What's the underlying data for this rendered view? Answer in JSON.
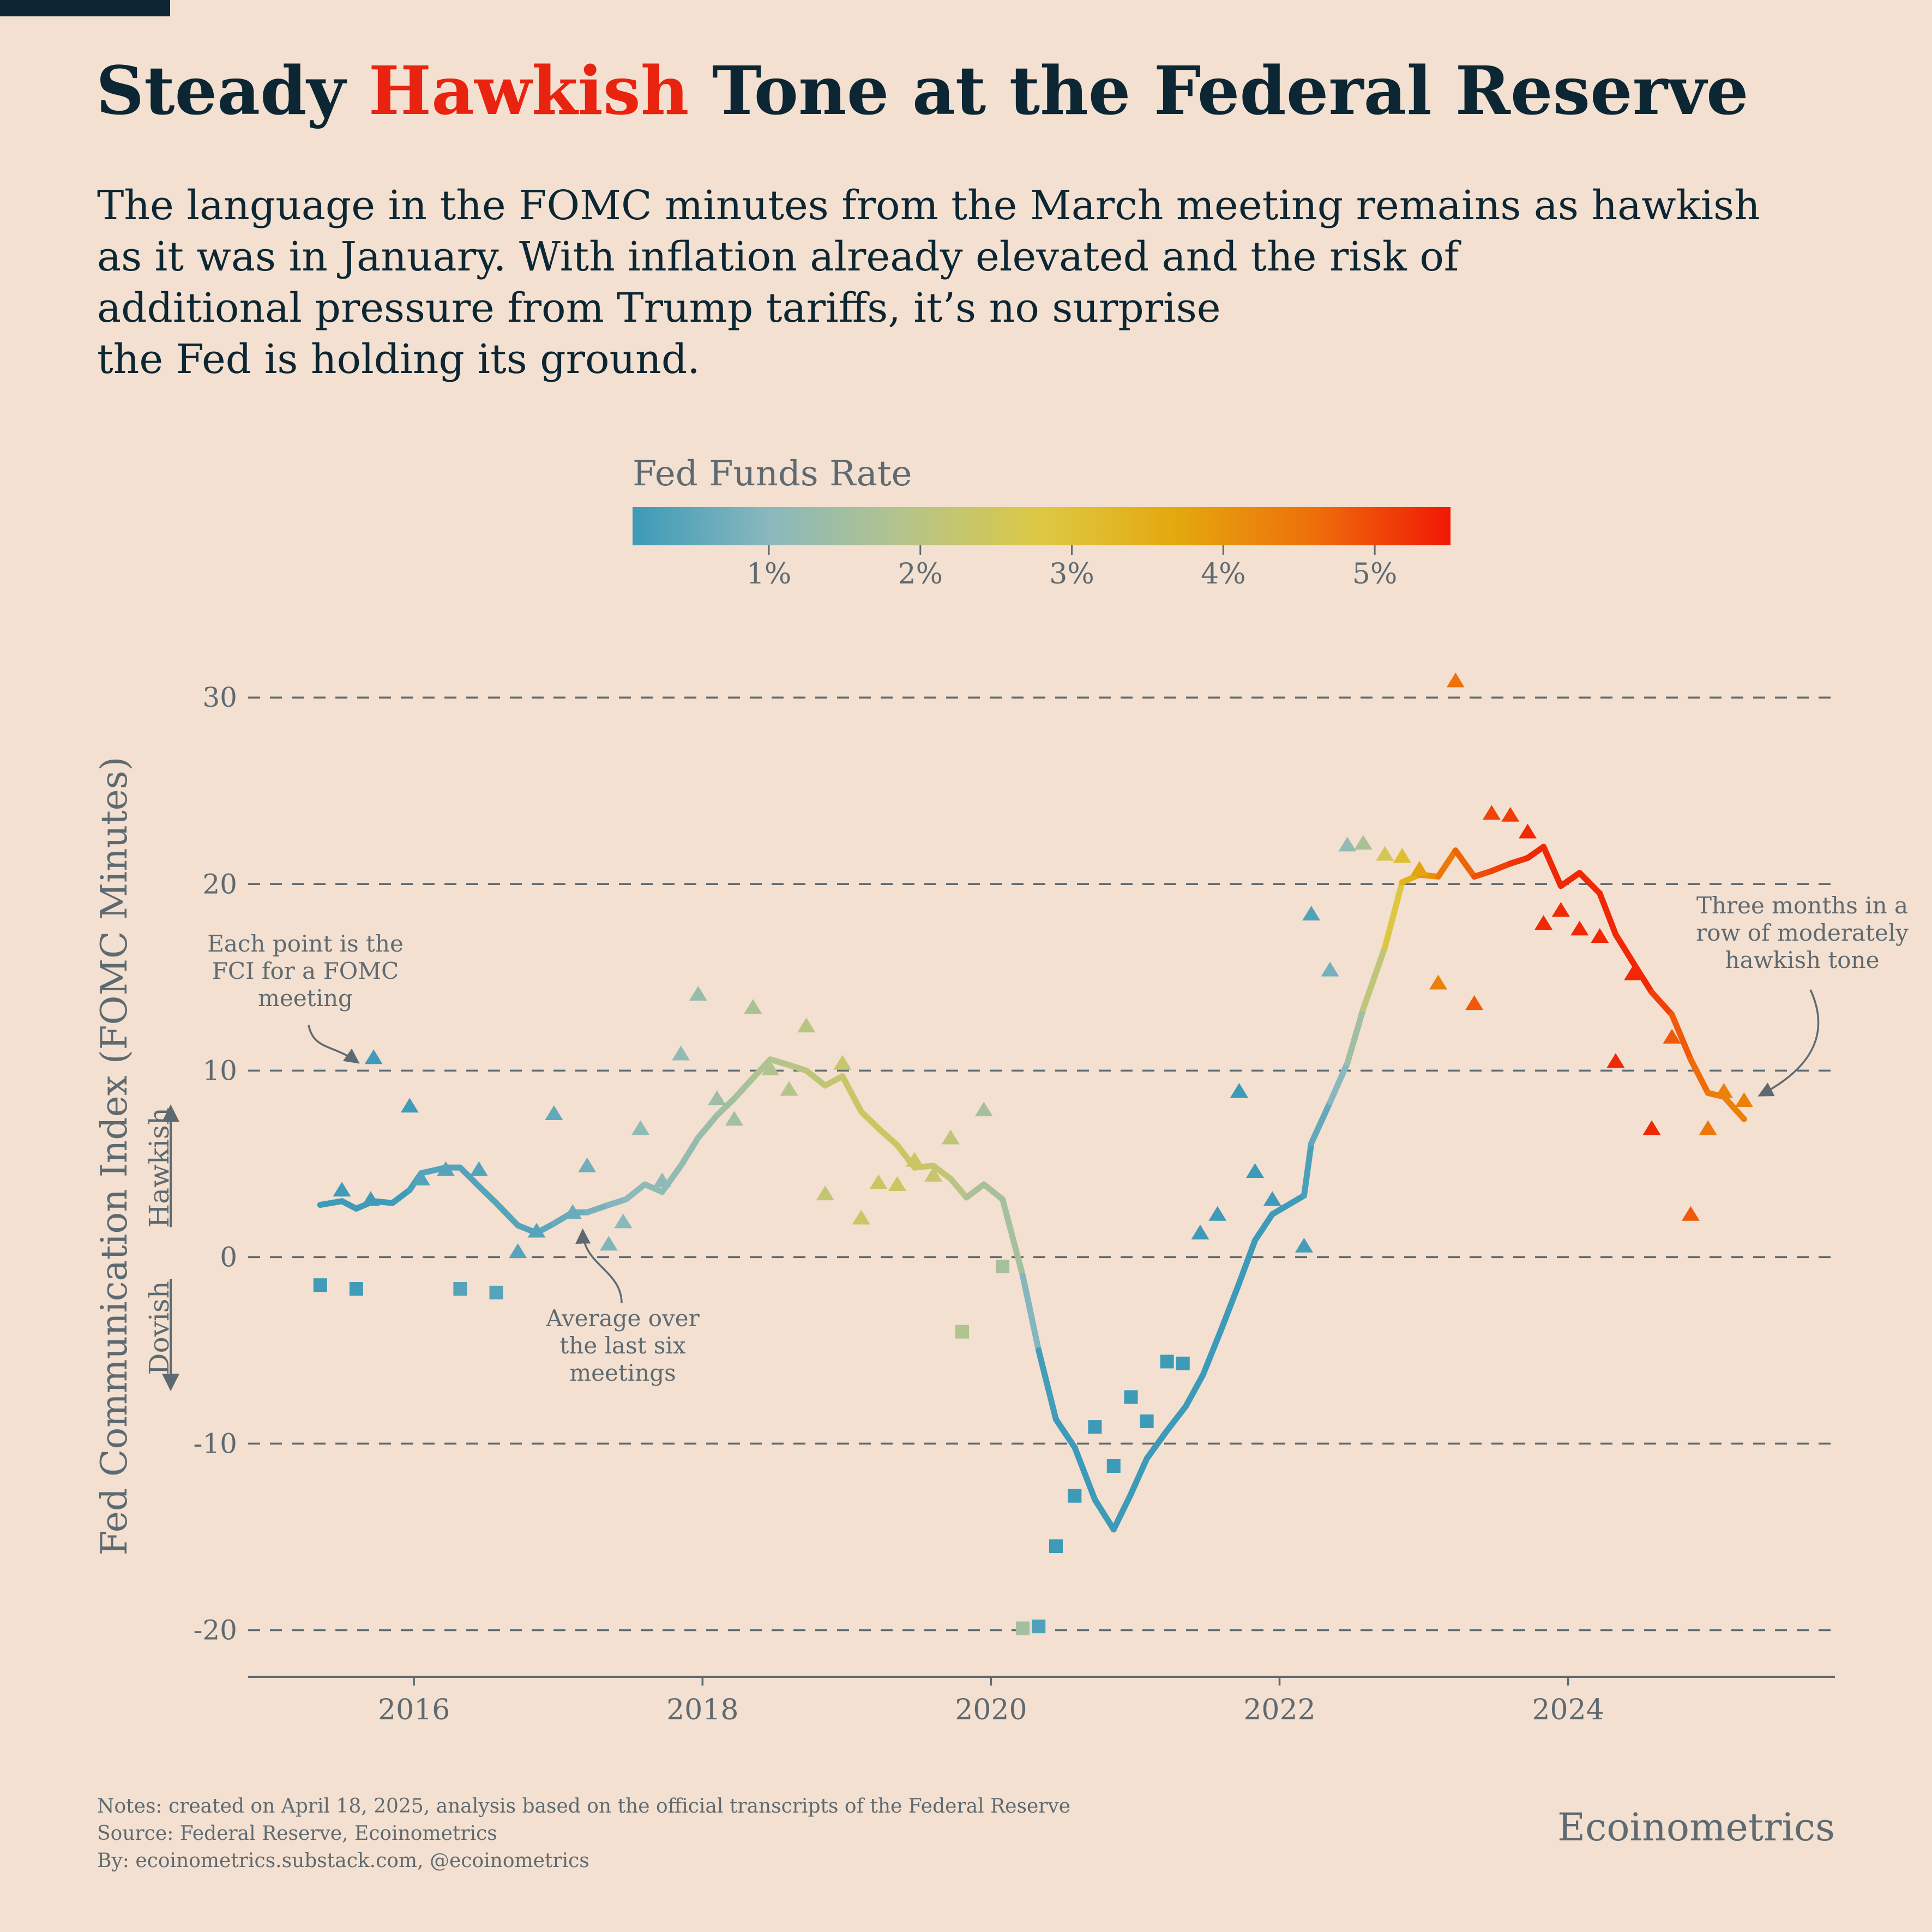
{
  "header": {
    "title_part1": "Steady ",
    "title_highlight": "Hawkish",
    "title_part2": " Tone at the Federal Reserve",
    "title_color": "#0c2633",
    "highlight_color": "#e8230f",
    "subtitle": "The language in the FOMC minutes from the March meeting remains as hawkish\nas it was in January. With inflation already elevated and the risk of\nadditional pressure from Trump tariffs, it’s no surprise\nthe Fed is holding its ground."
  },
  "legend": {
    "title": "Fed Funds Rate",
    "range": [
      0.1,
      5.5
    ],
    "ticks": [
      1,
      2,
      3,
      4,
      5
    ],
    "tick_labels": [
      "1%",
      "2%",
      "3%",
      "4%",
      "5%"
    ],
    "colors": [
      "#3d9ab8",
      "#89b8bd",
      "#b5c48a",
      "#ddc843",
      "#e4a80d",
      "#ee6f0a",
      "#f01805"
    ]
  },
  "chart_data": {
    "type": "scatter",
    "ylabel": "Fed Communication Index (FOMC Minutes)",
    "xlabel": "",
    "xlim": [
      2014.85,
      2025.85
    ],
    "ylim": [
      -22.5,
      31
    ],
    "x_ticks": [
      2016,
      2018,
      2020,
      2022,
      2024
    ],
    "x_tick_labels": [
      "2016",
      "2018",
      "2020",
      "2022",
      "2024"
    ],
    "y_ticks": [
      -20,
      -10,
      0,
      10,
      20,
      30
    ],
    "y_tick_labels": [
      "-20",
      "-10",
      "0",
      "10",
      "20",
      "30"
    ],
    "grid": "horizontal dashed",
    "hawkish_label": "Hawkish",
    "dovish_label": "Dovish",
    "points": [
      {
        "x": 2015.35,
        "y": -1.5,
        "rate": 0.12
      },
      {
        "x": 2015.5,
        "y": 3.6,
        "rate": 0.13
      },
      {
        "x": 2015.6,
        "y": -1.7,
        "rate": 0.14
      },
      {
        "x": 2015.7,
        "y": 3.1,
        "rate": 0.14
      },
      {
        "x": 2015.72,
        "y": 10.7,
        "rate": 0.14
      },
      {
        "x": 2015.97,
        "y": 8.1,
        "rate": 0.13
      },
      {
        "x": 2016.05,
        "y": 4.2,
        "rate": 0.37
      },
      {
        "x": 2016.22,
        "y": 4.7,
        "rate": 0.37
      },
      {
        "x": 2016.32,
        "y": -1.7,
        "rate": 0.37
      },
      {
        "x": 2016.45,
        "y": 4.7,
        "rate": 0.38
      },
      {
        "x": 2016.57,
        "y": -1.9,
        "rate": 0.39
      },
      {
        "x": 2016.72,
        "y": 0.3,
        "rate": 0.4
      },
      {
        "x": 2016.85,
        "y": 1.4,
        "rate": 0.41
      },
      {
        "x": 2016.97,
        "y": 7.7,
        "rate": 0.54
      },
      {
        "x": 2017.1,
        "y": 2.4,
        "rate": 0.65
      },
      {
        "x": 2017.2,
        "y": 4.9,
        "rate": 0.7
      },
      {
        "x": 2017.35,
        "y": 0.7,
        "rate": 0.9
      },
      {
        "x": 2017.45,
        "y": 1.9,
        "rate": 1.0
      },
      {
        "x": 2017.57,
        "y": 6.9,
        "rate": 1.15
      },
      {
        "x": 2017.72,
        "y": 4.1,
        "rate": 1.15
      },
      {
        "x": 2017.85,
        "y": 10.9,
        "rate": 1.16
      },
      {
        "x": 2017.97,
        "y": 14.1,
        "rate": 1.3
      },
      {
        "x": 2018.1,
        "y": 8.5,
        "rate": 1.41
      },
      {
        "x": 2018.22,
        "y": 7.4,
        "rate": 1.5
      },
      {
        "x": 2018.35,
        "y": 13.4,
        "rate": 1.7
      },
      {
        "x": 2018.47,
        "y": 10.1,
        "rate": 1.82
      },
      {
        "x": 2018.6,
        "y": 9,
        "rate": 1.91
      },
      {
        "x": 2018.72,
        "y": 12.4,
        "rate": 2.0
      },
      {
        "x": 2018.85,
        "y": 3.4,
        "rate": 2.2
      },
      {
        "x": 2018.97,
        "y": 10.4,
        "rate": 2.27
      },
      {
        "x": 2019.1,
        "y": 2.1,
        "rate": 2.4
      },
      {
        "x": 2019.22,
        "y": 4.0,
        "rate": 2.41
      },
      {
        "x": 2019.35,
        "y": 3.9,
        "rate": 2.42
      },
      {
        "x": 2019.47,
        "y": 5.2,
        "rate": 2.4
      },
      {
        "x": 2019.6,
        "y": 4.4,
        "rate": 2.3
      },
      {
        "x": 2019.72,
        "y": 6.4,
        "rate": 2.1
      },
      {
        "x": 2019.8,
        "y": -4,
        "rate": 1.8
      },
      {
        "x": 2019.95,
        "y": 7.9,
        "rate": 1.6
      },
      {
        "x": 2020.08,
        "y": -0.5,
        "rate": 1.6
      },
      {
        "x": 2020.22,
        "y": -19.9,
        "rate": 1.55
      },
      {
        "x": 2020.33,
        "y": -19.8,
        "rate": 0.3
      },
      {
        "x": 2020.45,
        "y": -15.5,
        "rate": 0.05
      },
      {
        "x": 2020.58,
        "y": -12.8,
        "rate": 0.09
      },
      {
        "x": 2020.72,
        "y": -9.1,
        "rate": 0.1
      },
      {
        "x": 2020.85,
        "y": -11.2,
        "rate": 0.09
      },
      {
        "x": 2020.97,
        "y": -7.5,
        "rate": 0.09
      },
      {
        "x": 2021.08,
        "y": -8.8,
        "rate": 0.09
      },
      {
        "x": 2021.22,
        "y": -5.6,
        "rate": 0.07
      },
      {
        "x": 2021.33,
        "y": -5.7,
        "rate": 0.06
      },
      {
        "x": 2021.45,
        "y": 1.3,
        "rate": 0.06
      },
      {
        "x": 2021.57,
        "y": 2.3,
        "rate": 0.1
      },
      {
        "x": 2021.72,
        "y": 8.9,
        "rate": 0.08
      },
      {
        "x": 2021.83,
        "y": 4.6,
        "rate": 0.08
      },
      {
        "x": 2021.95,
        "y": 3.1,
        "rate": 0.08
      },
      {
        "x": 2022.17,
        "y": 0.6,
        "rate": 0.2
      },
      {
        "x": 2022.22,
        "y": 18.4,
        "rate": 0.33
      },
      {
        "x": 2022.35,
        "y": 15.4,
        "rate": 0.77
      },
      {
        "x": 2022.47,
        "y": 22.1,
        "rate": 1.21
      },
      {
        "x": 2022.58,
        "y": 22.2,
        "rate": 1.68
      },
      {
        "x": 2022.73,
        "y": 21.6,
        "rate": 2.56
      },
      {
        "x": 2022.85,
        "y": 21.5,
        "rate": 3.08
      },
      {
        "x": 2022.97,
        "y": 20.8,
        "rate": 3.78
      },
      {
        "x": 2023.1,
        "y": 14.7,
        "rate": 4.33
      },
      {
        "x": 2023.22,
        "y": 30.9,
        "rate": 4.57
      },
      {
        "x": 2023.35,
        "y": 13.6,
        "rate": 4.83
      },
      {
        "x": 2023.47,
        "y": 23.8,
        "rate": 5.06
      },
      {
        "x": 2023.6,
        "y": 23.7,
        "rate": 5.12
      },
      {
        "x": 2023.72,
        "y": 22.8,
        "rate": 5.33
      },
      {
        "x": 2023.83,
        "y": 17.9,
        "rate": 5.33
      },
      {
        "x": 2023.95,
        "y": 18.6,
        "rate": 5.33
      },
      {
        "x": 2024.08,
        "y": 17.6,
        "rate": 5.33
      },
      {
        "x": 2024.22,
        "y": 17.2,
        "rate": 5.33
      },
      {
        "x": 2024.33,
        "y": 10.5,
        "rate": 5.33
      },
      {
        "x": 2024.45,
        "y": 15.2,
        "rate": 5.33
      },
      {
        "x": 2024.58,
        "y": 6.9,
        "rate": 5.33
      },
      {
        "x": 2024.72,
        "y": 11.8,
        "rate": 4.83
      },
      {
        "x": 2024.85,
        "y": 2.3,
        "rate": 4.83
      },
      {
        "x": 2024.97,
        "y": 6.9,
        "rate": 4.48
      },
      {
        "x": 2025.08,
        "y": 8.9,
        "rate": 4.33
      },
      {
        "x": 2025.22,
        "y": 8.4,
        "rate": 4.33
      }
    ],
    "series": [
      {
        "points": [
          {
            "x": 2015.35,
            "y": 2.8,
            "rate": 0.12
          },
          {
            "x": 2015.5,
            "y": 3.0,
            "rate": 0.13
          },
          {
            "x": 2015.6,
            "y": 2.6,
            "rate": 0.14
          },
          {
            "x": 2015.72,
            "y": 3.0,
            "rate": 0.14
          },
          {
            "x": 2015.85,
            "y": 2.9,
            "rate": 0.14
          },
          {
            "x": 2015.97,
            "y": 3.6,
            "rate": 0.13
          },
          {
            "x": 2016.05,
            "y": 4.5,
            "rate": 0.37
          },
          {
            "x": 2016.22,
            "y": 4.8,
            "rate": 0.37
          },
          {
            "x": 2016.32,
            "y": 4.8,
            "rate": 0.37
          },
          {
            "x": 2016.45,
            "y": 3.8,
            "rate": 0.38
          },
          {
            "x": 2016.57,
            "y": 2.9,
            "rate": 0.39
          },
          {
            "x": 2016.72,
            "y": 1.7,
            "rate": 0.4
          },
          {
            "x": 2016.85,
            "y": 1.3,
            "rate": 0.41
          },
          {
            "x": 2016.97,
            "y": 1.8,
            "rate": 0.54
          },
          {
            "x": 2017.1,
            "y": 2.4,
            "rate": 0.65
          },
          {
            "x": 2017.2,
            "y": 2.4,
            "rate": 0.7
          },
          {
            "x": 2017.35,
            "y": 2.8,
            "rate": 0.9
          },
          {
            "x": 2017.47,
            "y": 3.1,
            "rate": 1.0
          },
          {
            "x": 2017.6,
            "y": 3.9,
            "rate": 1.15
          },
          {
            "x": 2017.72,
            "y": 3.5,
            "rate": 1.15
          },
          {
            "x": 2017.85,
            "y": 4.9,
            "rate": 1.16
          },
          {
            "x": 2017.97,
            "y": 6.4,
            "rate": 1.3
          },
          {
            "x": 2018.1,
            "y": 7.6,
            "rate": 1.41
          },
          {
            "x": 2018.22,
            "y": 8.5,
            "rate": 1.5
          },
          {
            "x": 2018.35,
            "y": 9.6,
            "rate": 1.7
          },
          {
            "x": 2018.47,
            "y": 10.6,
            "rate": 1.82
          },
          {
            "x": 2018.6,
            "y": 10.3,
            "rate": 1.91
          },
          {
            "x": 2018.72,
            "y": 10.0,
            "rate": 2.0
          },
          {
            "x": 2018.85,
            "y": 9.2,
            "rate": 2.2
          },
          {
            "x": 2018.97,
            "y": 9.7,
            "rate": 2.27
          },
          {
            "x": 2019.1,
            "y": 7.8,
            "rate": 2.4
          },
          {
            "x": 2019.22,
            "y": 6.9,
            "rate": 2.41
          },
          {
            "x": 2019.35,
            "y": 6.0,
            "rate": 2.42
          },
          {
            "x": 2019.47,
            "y": 4.8,
            "rate": 2.4
          },
          {
            "x": 2019.6,
            "y": 4.9,
            "rate": 2.3
          },
          {
            "x": 2019.72,
            "y": 4.2,
            "rate": 2.1
          },
          {
            "x": 2019.83,
            "y": 3.2,
            "rate": 1.8
          },
          {
            "x": 2019.95,
            "y": 3.9,
            "rate": 1.6
          },
          {
            "x": 2020.08,
            "y": 3.1,
            "rate": 1.6
          },
          {
            "x": 2020.22,
            "y": -1.0,
            "rate": 1.55
          },
          {
            "x": 2020.33,
            "y": -5.0,
            "rate": 0.3
          },
          {
            "x": 2020.45,
            "y": -8.7,
            "rate": 0.05
          },
          {
            "x": 2020.58,
            "y": -10.2,
            "rate": 0.09
          },
          {
            "x": 2020.72,
            "y": -13.0,
            "rate": 0.1
          },
          {
            "x": 2020.85,
            "y": -14.6,
            "rate": 0.09
          },
          {
            "x": 2020.97,
            "y": -12.7,
            "rate": 0.09
          },
          {
            "x": 2021.08,
            "y": -10.8,
            "rate": 0.09
          },
          {
            "x": 2021.22,
            "y": -9.3,
            "rate": 0.07
          },
          {
            "x": 2021.35,
            "y": -8.0,
            "rate": 0.06
          },
          {
            "x": 2021.47,
            "y": -6.3,
            "rate": 0.06
          },
          {
            "x": 2021.6,
            "y": -3.8,
            "rate": 0.1
          },
          {
            "x": 2021.72,
            "y": -1.4,
            "rate": 0.08
          },
          {
            "x": 2021.83,
            "y": 0.9,
            "rate": 0.08
          },
          {
            "x": 2021.95,
            "y": 2.3,
            "rate": 0.08
          },
          {
            "x": 2022.17,
            "y": 3.3,
            "rate": 0.2
          },
          {
            "x": 2022.22,
            "y": 6.1,
            "rate": 0.33
          },
          {
            "x": 2022.35,
            "y": 8.3,
            "rate": 0.77
          },
          {
            "x": 2022.47,
            "y": 10.4,
            "rate": 1.21
          },
          {
            "x": 2022.58,
            "y": 13.3,
            "rate": 1.68
          },
          {
            "x": 2022.73,
            "y": 16.6,
            "rate": 2.56
          },
          {
            "x": 2022.85,
            "y": 20.1,
            "rate": 3.08
          },
          {
            "x": 2022.97,
            "y": 20.5,
            "rate": 3.78
          },
          {
            "x": 2023.1,
            "y": 20.4,
            "rate": 4.33
          },
          {
            "x": 2023.22,
            "y": 21.8,
            "rate": 4.57
          },
          {
            "x": 2023.35,
            "y": 20.4,
            "rate": 4.83
          },
          {
            "x": 2023.47,
            "y": 20.7,
            "rate": 5.06
          },
          {
            "x": 2023.6,
            "y": 21.1,
            "rate": 5.12
          },
          {
            "x": 2023.72,
            "y": 21.4,
            "rate": 5.33
          },
          {
            "x": 2023.83,
            "y": 22.0,
            "rate": 5.33
          },
          {
            "x": 2023.95,
            "y": 19.9,
            "rate": 5.33
          },
          {
            "x": 2024.08,
            "y": 20.6,
            "rate": 5.33
          },
          {
            "x": 2024.22,
            "y": 19.5,
            "rate": 5.33
          },
          {
            "x": 2024.33,
            "y": 17.3,
            "rate": 5.33
          },
          {
            "x": 2024.45,
            "y": 15.8,
            "rate": 5.33
          },
          {
            "x": 2024.58,
            "y": 14.2,
            "rate": 5.33
          },
          {
            "x": 2024.72,
            "y": 13.0,
            "rate": 4.83
          },
          {
            "x": 2024.85,
            "y": 10.6,
            "rate": 4.83
          },
          {
            "x": 2024.97,
            "y": 8.8,
            "rate": 4.48
          },
          {
            "x": 2025.08,
            "y": 8.6,
            "rate": 4.33
          },
          {
            "x": 2025.22,
            "y": 7.4,
            "rate": 4.33
          }
        ]
      }
    ],
    "annotations": {
      "points_note": "Each point is the\nFCI for a FOMC\nmeeting",
      "average_note": "Average over\nthe last six\nmeetings",
      "recent_note": "Three months in a\nrow of moderately\nhawkish tone"
    }
  },
  "footer": {
    "notes": "Notes: created on April 18, 2025, analysis based on the official transcripts of the Federal Reserve\nSource: Federal Reserve, Ecoinometrics\nBy: ecoinometrics.substack.com, @ecoinometrics",
    "brand": "Ecoinometrics"
  }
}
